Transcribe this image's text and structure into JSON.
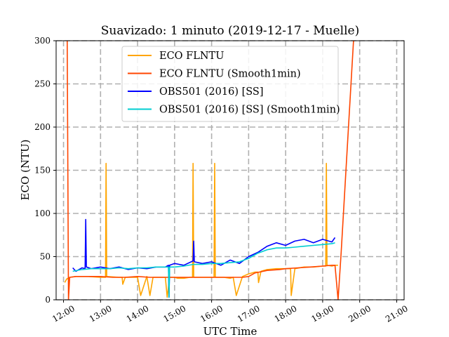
{
  "chart_data": {
    "type": "line",
    "title": "Suavizado: 1 minuto (2019-12-17 - Muelle)",
    "xlabel": "UTC Time",
    "ylabel": "ECO (NTU)",
    "xlim": [
      "11:48",
      "21:12"
    ],
    "ylim": [
      0,
      300
    ],
    "grid": true,
    "legend_position": "top-center",
    "x_ticks": [
      "12:00",
      "13:00",
      "14:00",
      "15:00",
      "16:00",
      "17:00",
      "18:00",
      "19:00",
      "20:00",
      "21:00"
    ],
    "y_ticks": [
      0,
      50,
      100,
      150,
      200,
      250,
      300
    ],
    "series": [
      {
        "name": "ECO FLNTU",
        "color": "#ffa500",
        "x": [
          "12:02",
          "12:05",
          "12:10",
          "12:20",
          "12:40",
          "13:00",
          "13:08",
          "13:09",
          "13:10",
          "13:30",
          "13:35",
          "13:36",
          "13:40",
          "13:45",
          "13:55",
          "14:00",
          "14:05",
          "14:15",
          "14:20",
          "14:25",
          "14:35",
          "14:45",
          "14:48",
          "14:52",
          "15:00",
          "15:05",
          "15:15",
          "15:25",
          "15:29",
          "15:30",
          "15:31",
          "15:40",
          "15:55",
          "16:00",
          "16:04",
          "16:05",
          "16:06",
          "16:10",
          "16:20",
          "16:30",
          "16:35",
          "16:40",
          "16:50",
          "17:00",
          "17:10",
          "17:15",
          "17:16",
          "17:20",
          "17:30",
          "17:45",
          "18:00",
          "18:08",
          "18:09",
          "18:15",
          "18:30",
          "18:45",
          "19:00",
          "19:05",
          "19:06",
          "19:07",
          "19:15",
          "19:20",
          "19:25"
        ],
        "y": [
          20,
          24,
          26,
          27,
          27,
          26,
          26,
          158,
          27,
          26,
          26,
          18,
          26,
          26,
          26,
          26,
          5,
          27,
          5,
          26,
          26,
          26,
          3,
          26,
          26,
          25,
          25,
          26,
          26,
          158,
          26,
          26,
          26,
          26,
          26,
          158,
          26,
          26,
          26,
          25,
          26,
          5,
          27,
          30,
          32,
          32,
          20,
          33,
          35,
          36,
          36,
          36,
          5,
          36,
          38,
          38,
          39,
          39,
          158,
          40,
          39,
          40,
          40
        ]
      },
      {
        "name": "ECO FLNTU (Smooth1min)",
        "color": "#ff4500",
        "x": [
          "12:06",
          "12:08",
          "12:10",
          "12:20",
          "12:40",
          "13:00",
          "13:20",
          "13:40",
          "14:00",
          "14:20",
          "14:40",
          "15:00",
          "15:20",
          "15:40",
          "16:00",
          "16:05",
          "16:10",
          "16:30",
          "16:50",
          "17:00",
          "17:10",
          "17:30",
          "17:50",
          "18:00",
          "18:20",
          "18:40",
          "19:00",
          "19:15",
          "19:20",
          "19:25",
          "19:30",
          "19:50",
          "19:52"
        ],
        "y": [
          300,
          0,
          26,
          27,
          27,
          27,
          26,
          26,
          27,
          26,
          26,
          26,
          26,
          26,
          26,
          26,
          26,
          26,
          26,
          27,
          31,
          34,
          35,
          36,
          37,
          38,
          39,
          40,
          40,
          0,
          55,
          300,
          300
        ]
      },
      {
        "name": "OBS501 (2016) [SS]",
        "color": "#0000ff",
        "x": [
          "12:15",
          "12:20",
          "12:30",
          "12:35",
          "12:36",
          "12:37",
          "12:45",
          "13:00",
          "13:15",
          "13:30",
          "13:45",
          "14:00",
          "14:15",
          "14:30",
          "14:45",
          "14:50",
          "14:51",
          "14:52",
          "15:00",
          "15:15",
          "15:30",
          "15:31",
          "15:32",
          "15:45",
          "16:00",
          "16:15",
          "16:30",
          "16:45",
          "17:00",
          "17:15",
          "17:30",
          "17:45",
          "18:00",
          "18:15",
          "18:30",
          "18:45",
          "19:00",
          "19:15",
          "19:20"
        ],
        "y": [
          37,
          33,
          37,
          36,
          93,
          38,
          36,
          38,
          36,
          38,
          35,
          37,
          36,
          38,
          38,
          40,
          3,
          40,
          42,
          40,
          45,
          68,
          44,
          42,
          44,
          40,
          46,
          42,
          50,
          55,
          62,
          66,
          63,
          68,
          70,
          66,
          70,
          67,
          72
        ]
      },
      {
        "name": "OBS501 (2016) [SS] (Smooth1min)",
        "color": "#00ced1",
        "x": [
          "12:15",
          "12:30",
          "12:45",
          "13:00",
          "13:15",
          "13:30",
          "13:45",
          "14:00",
          "14:15",
          "14:30",
          "14:45",
          "14:50",
          "14:51",
          "14:52",
          "15:00",
          "15:15",
          "15:30",
          "15:45",
          "16:00",
          "16:15",
          "16:30",
          "16:45",
          "17:00",
          "17:15",
          "17:30",
          "17:45",
          "18:00",
          "18:15",
          "18:30",
          "18:45",
          "19:00",
          "19:15",
          "19:20"
        ],
        "y": [
          33,
          35,
          36,
          36,
          36,
          37,
          36,
          37,
          37,
          38,
          38,
          38,
          3,
          38,
          38,
          39,
          41,
          41,
          42,
          42,
          43,
          44,
          48,
          54,
          58,
          60,
          60,
          61,
          62,
          63,
          64,
          65,
          66
        ]
      }
    ]
  }
}
